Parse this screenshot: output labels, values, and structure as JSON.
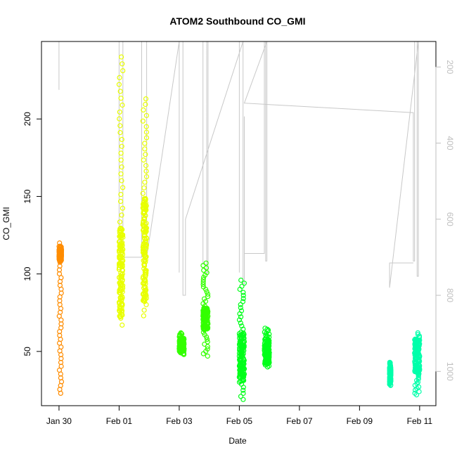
{
  "chart_data": {
    "type": "scatter",
    "title": "ATOM2 Southbound CO_GMI",
    "xlabel": "Date",
    "ylabel": "CO_GMI",
    "x_ticks": [
      "Jan 30",
      "Feb 01",
      "Feb 03",
      "Feb 05",
      "Feb 07",
      "Feb 09",
      "Feb 11"
    ],
    "y_ticks": [
      50,
      100,
      150,
      200
    ],
    "y2_ticks": [
      200,
      400,
      600,
      800,
      1000
    ],
    "x_range_days": [
      "2017-01-29T10:00",
      "2017-02-11T13:00"
    ],
    "ylim": [
      15,
      250
    ],
    "y2lim_reversed": [
      133,
      1090
    ],
    "grid": false,
    "colors": {
      "orange": "#ff8c00",
      "yellow": "#e8ff00",
      "green": "#33ff00",
      "bright_green": "#00ff1a",
      "teal": "#00ffaa",
      "pressure_line": "#c8c8c8"
    },
    "series": [
      {
        "color": "#ff8c00",
        "clusters": [
          {
            "x": "2017-01-30T00:00",
            "x_end": "2017-01-30T02:00",
            "y_min": 23,
            "y_max": 120,
            "y_dense": [
              108,
              118
            ]
          }
        ]
      },
      {
        "color": "#e8ff00",
        "clusters": [
          {
            "x": "2017-02-01T00:00",
            "x_end": "2017-02-01T03:00",
            "y_min": 67,
            "y_max": 240,
            "y_dense": [
              72,
              130
            ]
          },
          {
            "x": "2017-02-01T19:00",
            "x_end": "2017-02-01T22:00",
            "y_min": 73,
            "y_max": 213,
            "y_dense": [
              82,
              150
            ]
          }
        ]
      },
      {
        "color": "#33ff00",
        "clusters": [
          {
            "x": "2017-02-03T00:00",
            "x_end": "2017-02-03T04:00",
            "y_min": 48,
            "y_max": 62,
            "y_dense": [
              50,
              58
            ]
          },
          {
            "x": "2017-02-03T19:00",
            "x_end": "2017-02-03T23:00",
            "y_min": 47,
            "y_max": 107,
            "y_dense": [
              64,
              78
            ]
          }
        ]
      },
      {
        "color": "#00ff1a",
        "clusters": [
          {
            "x": "2017-02-05T00:00",
            "x_end": "2017-02-05T04:00",
            "y_min": 19,
            "y_max": 96,
            "y_dense": [
              30,
              62
            ]
          },
          {
            "x": "2017-02-05T20:00",
            "x_end": "2017-02-06T00:00",
            "y_min": 40,
            "y_max": 65,
            "y_dense": [
              42,
              58
            ]
          }
        ]
      },
      {
        "color": "#00ffaa",
        "clusters": [
          {
            "x": "2017-02-10T00:00",
            "x_end": "2017-02-10T01:00",
            "y_min": 28,
            "y_max": 43,
            "y_dense": [
              30,
              40
            ]
          },
          {
            "x": "2017-02-10T20:00",
            "x_end": "2017-02-11T00:00",
            "y_min": 22,
            "y_max": 62,
            "y_dense": [
              35,
              58
            ]
          }
        ]
      }
    ],
    "pressure_y2": [
      {
        "x": "2017-01-30T00:00",
        "y2": 133
      },
      {
        "x": "2017-01-30T00:00",
        "y2": 225
      },
      {
        "x": "2017-01-30T00:00",
        "y2": 133
      },
      {
        "x": "2017-01-30T00:00",
        "y2": 260
      },
      {
        "x": "2017-01-30T00:00",
        "y2": 133
      },
      {
        "x": "2017-01-30T02:00",
        "y2": 133
      },
      {
        "x": "2017-02-01T00:00",
        "y2": 133
      },
      {
        "x": "2017-02-01T00:00",
        "y2": 700
      },
      {
        "x": "2017-02-01T00:00",
        "y2": 133
      },
      {
        "x": "2017-02-01T03:00",
        "y2": 133
      },
      {
        "x": "2017-02-01T03:00",
        "y2": 700
      },
      {
        "x": "2017-02-01T18:00",
        "y2": 700
      },
      {
        "x": "2017-02-01T18:00",
        "y2": 133
      },
      {
        "x": "2017-02-01T22:00",
        "y2": 133
      },
      {
        "x": "2017-02-01T22:00",
        "y2": 700
      },
      {
        "x": "2017-02-03T00:00",
        "y2": 133
      },
      {
        "x": "2017-02-03T00:00",
        "y2": 740
      },
      {
        "x": "2017-02-03T00:00",
        "y2": 133
      },
      {
        "x": "2017-02-03T03:00",
        "y2": 133
      },
      {
        "x": "2017-02-03T03:00",
        "y2": 800
      },
      {
        "x": "2017-02-03T05:00",
        "y2": 800
      },
      {
        "x": "2017-02-03T05:00",
        "y2": 600
      },
      {
        "x": "2017-02-05T03:00",
        "y2": 133
      },
      {
        "x": "2017-02-03T19:00",
        "y2": 133
      },
      {
        "x": "2017-02-03T19:00",
        "y2": 720
      },
      {
        "x": "2017-02-03T19:00",
        "y2": 133
      },
      {
        "x": "2017-02-03T22:00",
        "y2": 133
      },
      {
        "x": "2017-02-03T22:00",
        "y2": 740
      },
      {
        "x": "2017-02-03T23:00",
        "y2": 740
      },
      {
        "x": "2017-02-03T23:00",
        "y2": 133
      },
      {
        "x": "2017-02-05T00:00",
        "y2": 133
      },
      {
        "x": "2017-02-05T00:00",
        "y2": 740
      },
      {
        "x": "2017-02-05T00:00",
        "y2": 133
      },
      {
        "x": "2017-02-05T03:00",
        "y2": 133
      },
      {
        "x": "2017-02-05T03:00",
        "y2": 770
      },
      {
        "x": "2017-02-05T04:00",
        "y2": 770
      },
      {
        "x": "2017-02-05T04:00",
        "y2": 330
      },
      {
        "x": "2017-02-05T04:00",
        "y2": 690
      },
      {
        "x": "2017-02-05T20:00",
        "y2": 690
      },
      {
        "x": "2017-02-05T20:00",
        "y2": 133
      },
      {
        "x": "2017-02-05T21:00",
        "y2": 133
      },
      {
        "x": "2017-02-05T21:00",
        "y2": 710
      },
      {
        "x": "2017-02-05T22:00",
        "y2": 710
      },
      {
        "x": "2017-02-05T22:00",
        "y2": 133
      },
      {
        "x": "2017-02-05T04:00",
        "y2": 295
      },
      {
        "x": "2017-02-10T19:00",
        "y2": 320
      },
      {
        "x": "2017-02-10T19:00",
        "y2": 710
      },
      {
        "x": "2017-02-10T20:00",
        "y2": 710
      },
      {
        "x": "2017-02-10T20:00",
        "y2": 133
      },
      {
        "x": "2017-02-10T22:00",
        "y2": 133
      },
      {
        "x": "2017-02-10T22:00",
        "y2": 750
      },
      {
        "x": "2017-02-10T23:00",
        "y2": 750
      },
      {
        "x": "2017-02-10T23:00",
        "y2": 133
      },
      {
        "x": "2017-02-10T00:00",
        "y2": 780
      },
      {
        "x": "2017-02-10T00:00",
        "y2": 715
      },
      {
        "x": "2017-02-10T19:00",
        "y2": 715
      }
    ]
  }
}
